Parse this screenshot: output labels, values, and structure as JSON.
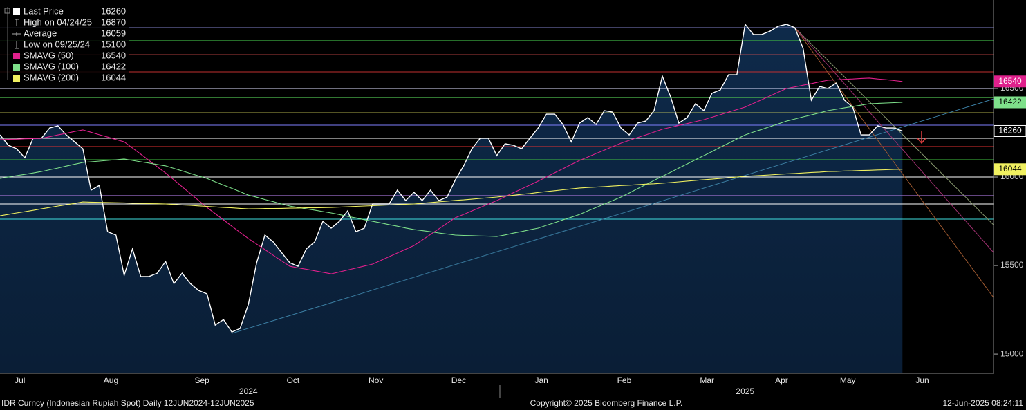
{
  "chart_data": {
    "type": "line",
    "categories": [
      null,
      null,
      "Jul",
      null,
      null,
      null,
      null,
      null,
      null,
      null,
      null,
      null,
      null,
      "Aug",
      null,
      null,
      null,
      null,
      null,
      null,
      null,
      null,
      null,
      null,
      "Sep",
      null,
      null,
      null,
      null,
      null,
      null,
      null,
      null,
      null,
      null,
      "Oct",
      null,
      null,
      null,
      null,
      null,
      null,
      null,
      null,
      null,
      "Nov",
      null,
      null,
      null,
      null,
      null,
      null,
      null,
      null,
      null,
      "Dec",
      null,
      null,
      null,
      null,
      null,
      null,
      null,
      null,
      null,
      "Jan",
      null,
      null,
      null,
      null,
      null,
      null,
      null,
      null,
      null,
      "Feb",
      null,
      null,
      null,
      null,
      null,
      null,
      null,
      null,
      null,
      "Mar",
      null,
      null,
      null,
      null,
      null,
      null,
      null,
      null,
      "Apr",
      null,
      null,
      null,
      null,
      null,
      null,
      null,
      "May",
      null,
      null,
      null,
      null,
      null,
      null,
      null,
      null,
      "Jun",
      null,
      null,
      null,
      null,
      null,
      null,
      null,
      null
    ],
    "years": [
      {
        "label": "2024",
        "index": 30
      },
      {
        "label": "2025",
        "index": 90
      }
    ],
    "series": [
      {
        "name": "Last Price",
        "color": "#ffffff",
        "last": 16260,
        "values": [
          16238,
          16180,
          16160,
          16109,
          16219,
          16219,
          16277,
          16289,
          16238,
          16199,
          16160,
          15926,
          15953,
          15691,
          15672,
          15445,
          15594,
          15438,
          15438,
          15457,
          15523,
          15398,
          15457,
          15398,
          15359,
          15340,
          15164,
          15195,
          15125,
          15145,
          15281,
          15516,
          15672,
          15633,
          15574,
          15516,
          15496,
          15594,
          15633,
          15750,
          15711,
          15750,
          15809,
          15691,
          15711,
          15848,
          15848,
          15848,
          15926,
          15867,
          15914,
          15867,
          15926,
          15867,
          15887,
          15984,
          16063,
          16160,
          16219,
          16219,
          16121,
          16188,
          16180,
          16160,
          16219,
          16277,
          16355,
          16355,
          16297,
          16199,
          16305,
          16336,
          16297,
          16375,
          16367,
          16277,
          16238,
          16305,
          16316,
          16375,
          16570,
          16453,
          16305,
          16336,
          16414,
          16375,
          16473,
          16492,
          16578,
          16578,
          16863,
          16805,
          16805,
          16824,
          16852,
          16863,
          16844,
          16727,
          16434,
          16512,
          16500,
          16531,
          16434,
          16395,
          16238,
          16238,
          16289,
          16277,
          16277,
          16260,
          null,
          null,
          null,
          null,
          null,
          null,
          null,
          null,
          null,
          null
        ]
      },
      {
        "name": "SMAVG (50)",
        "color": "#e0208c",
        "last": 16540,
        "values": [
          16211,
          16213,
          16214,
          16216,
          16217,
          16219,
          16228,
          16238,
          16247,
          16257,
          16266,
          16253,
          16239,
          16226,
          16212,
          16199,
          16164,
          16129,
          16094,
          16058,
          16023,
          15984,
          15945,
          15906,
          15867,
          15828,
          15793,
          15758,
          15722,
          15687,
          15652,
          15621,
          15590,
          15558,
          15527,
          15496,
          15487,
          15479,
          15470,
          15462,
          15453,
          15464,
          15475,
          15486,
          15497,
          15508,
          15529,
          15550,
          15571,
          15592,
          15613,
          15644,
          15676,
          15707,
          15739,
          15770,
          15789,
          15809,
          15828,
          15848,
          15867,
          15889,
          15911,
          15933,
          15955,
          15977,
          16000,
          16024,
          16047,
          16071,
          16094,
          16113,
          16133,
          16152,
          16172,
          16191,
          16207,
          16223,
          16238,
          16254,
          16270,
          16281,
          16292,
          16302,
          16313,
          16324,
          16338,
          16352,
          16367,
          16381,
          16395,
          16416,
          16437,
          16458,
          16479,
          16500,
          16509,
          16519,
          16528,
          16538,
          16547,
          16549,
          16552,
          16554,
          16557,
          16559,
          16554,
          16550,
          16545,
          16540,
          null,
          null,
          null,
          null,
          null,
          null,
          null,
          null,
          null,
          null
        ]
      },
      {
        "name": "SMAVG (100)",
        "color": "#7ee08a",
        "last": 16422,
        "values": [
          15992,
          16000,
          16008,
          16015,
          16023,
          16031,
          16041,
          16051,
          16062,
          16072,
          16082,
          16086,
          16090,
          16094,
          16098,
          16102,
          16094,
          16086,
          16079,
          16071,
          16063,
          16049,
          16035,
          16020,
          16006,
          15992,
          15973,
          15954,
          15936,
          15917,
          15898,
          15886,
          15873,
          15861,
          15848,
          15836,
          15828,
          15820,
          15813,
          15805,
          15797,
          15788,
          15778,
          15769,
          15759,
          15750,
          15741,
          15731,
          15722,
          15712,
          15703,
          15697,
          15691,
          15684,
          15678,
          15672,
          15670,
          15669,
          15667,
          15666,
          15664,
          15673,
          15683,
          15692,
          15702,
          15711,
          15727,
          15742,
          15758,
          15773,
          15789,
          15809,
          15828,
          15848,
          15867,
          15887,
          15910,
          15934,
          15957,
          15981,
          16004,
          16027,
          16051,
          16074,
          16098,
          16121,
          16144,
          16168,
          16191,
          16215,
          16238,
          16254,
          16269,
          16285,
          16300,
          16316,
          16328,
          16340,
          16351,
          16363,
          16375,
          16383,
          16391,
          16398,
          16406,
          16414,
          16416,
          16418,
          16420,
          16422,
          null,
          null,
          null,
          null,
          null,
          null,
          null,
          null,
          null,
          null
        ]
      },
      {
        "name": "SMAVG (200)",
        "color": "#f0f060",
        "last": 16044,
        "values": [
          15781,
          15789,
          15797,
          15804,
          15812,
          15820,
          15828,
          15836,
          15843,
          15851,
          15859,
          15858,
          15857,
          15856,
          15855,
          15854,
          15852,
          15851,
          15850,
          15849,
          15848,
          15845,
          15842,
          15840,
          15837,
          15834,
          15831,
          15828,
          15826,
          15823,
          15820,
          15821,
          15822,
          15822,
          15823,
          15824,
          15825,
          15826,
          15826,
          15827,
          15828,
          15830,
          15832,
          15834,
          15836,
          15838,
          15840,
          15842,
          15844,
          15846,
          15848,
          15852,
          15856,
          15860,
          15864,
          15868,
          15871,
          15875,
          15879,
          15883,
          15887,
          15892,
          15897,
          15902,
          15907,
          15913,
          15918,
          15923,
          15928,
          15933,
          15938,
          15941,
          15943,
          15946,
          15949,
          15952,
          15954,
          15957,
          15960,
          15962,
          15965,
          15969,
          15973,
          15977,
          15981,
          15985,
          15988,
          15992,
          15996,
          16000,
          16004,
          16007,
          16009,
          16012,
          16015,
          16018,
          16020,
          16023,
          16026,
          16028,
          16031,
          16032,
          16034,
          16035,
          16037,
          16038,
          16040,
          16041,
          16043,
          16044,
          null,
          null,
          null,
          null,
          null,
          null,
          null,
          null,
          null,
          null
        ]
      }
    ],
    "stats": [
      {
        "label": "High on 04/24/25",
        "value": 16870
      },
      {
        "label": "Average",
        "value": 16059
      },
      {
        "label": "Low on 09/25/24",
        "value": 15100
      }
    ],
    "hlines": [
      {
        "value": 16844,
        "color": "#8080c8"
      },
      {
        "value": 16770,
        "color": "#3cb043"
      },
      {
        "value": 16691,
        "color": "#e05050"
      },
      {
        "value": 16594,
        "color": "#c03030"
      },
      {
        "value": 16500,
        "color": "#e0e0ff"
      },
      {
        "value": 16449,
        "color": "#50c050"
      },
      {
        "value": 16363,
        "color": "#e0e060"
      },
      {
        "value": 16293,
        "color": "#8080ff"
      },
      {
        "value": 16219,
        "color": "#ffffff"
      },
      {
        "value": 16172,
        "color": "#e03030"
      },
      {
        "value": 16098,
        "color": "#40c040"
      },
      {
        "value": 16000,
        "color": "#ffffff"
      },
      {
        "value": 15895,
        "color": "#a070d0"
      },
      {
        "value": 15848,
        "color": "#ffffff"
      },
      {
        "value": 15762,
        "color": "#40e0e0"
      }
    ],
    "trendlines": [
      {
        "x": [
          28,
          120
        ],
        "values": [
          15117,
          16441
        ],
        "color": "#3a7ca0"
      },
      {
        "x": [
          96,
          120
        ],
        "values": [
          16844,
          15730
        ],
        "color": "#8a9a70"
      },
      {
        "x": [
          96,
          120
        ],
        "values": [
          16844,
          15574
        ],
        "color": "#a03070"
      },
      {
        "x": [
          96,
          120
        ],
        "values": [
          16844,
          15320
        ],
        "color": "#a05a30"
      }
    ],
    "ylim": [
      14891,
      17000
    ],
    "yticks": [
      15000,
      15500,
      16000,
      16500
    ],
    "footer": {
      "left": "IDR Curncy (Indonesian Rupiah Spot)  Daily 12JUN2024-12JUN2025",
      "center": "Copyright© 2025 Bloomberg Finance L.P.",
      "right": "12-Jun-2025 08:24:11"
    }
  }
}
